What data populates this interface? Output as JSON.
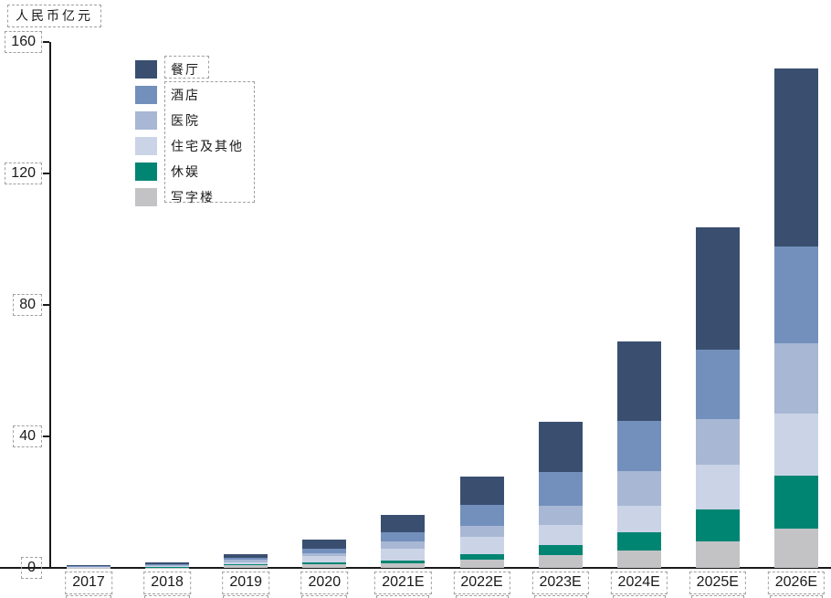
{
  "header": {
    "unit_label": "人民币亿元"
  },
  "colors": {
    "axis": "#1a1a1a",
    "dashed_box_border": "#a0a0a0",
    "restaurant": "#3a4f70",
    "hotel": "#7390bc",
    "hospital": "#a7b7d4",
    "residential": "#cbd4e6",
    "leisure": "#008573",
    "office": "#c3c3c6"
  },
  "chart_data": {
    "type": "bar",
    "stacked": true,
    "title": "",
    "ylabel": "人民币亿元",
    "xlabel": "",
    "ylim": [
      0,
      160
    ],
    "y_ticks": [
      0,
      40,
      80,
      120,
      160
    ],
    "grid": false,
    "legend_position": "upper-left-inside",
    "categories": [
      "2017",
      "2018",
      "2019",
      "2020",
      "2021E",
      "2022E",
      "2023E",
      "2024E",
      "2025E",
      "2026E"
    ],
    "series": [
      {
        "name": "餐厅",
        "color": "#3a4f70",
        "values": [
          0.3,
          0.5,
          1.1,
          2.6,
          5.1,
          8.6,
          15.2,
          24.3,
          37.0,
          54.3
        ]
      },
      {
        "name": "酒店",
        "color": "#7390bc",
        "values": [
          0.2,
          0.5,
          0.8,
          1.4,
          2.9,
          6.5,
          10.3,
          15.3,
          21.3,
          29.4
        ]
      },
      {
        "name": "医院",
        "color": "#a7b7d4",
        "values": [
          0.1,
          0.2,
          0.6,
          1.0,
          2.2,
          3.3,
          6.0,
          10.6,
          13.9,
          21.3
        ]
      },
      {
        "name": "住宅及其他",
        "color": "#cbd4e6",
        "values": [
          0.1,
          0.3,
          0.8,
          1.8,
          3.6,
          5.3,
          6.0,
          7.9,
          13.4,
          19.0
        ]
      },
      {
        "name": "休娱",
        "color": "#008573",
        "values": [
          0.0,
          0.1,
          0.3,
          0.6,
          0.8,
          1.6,
          3.0,
          5.7,
          9.8,
          16.0
        ]
      },
      {
        "name": "写字楼",
        "color": "#c3c3c6",
        "values": [
          0.1,
          0.1,
          0.7,
          1.1,
          1.4,
          2.6,
          4.0,
          5.2,
          8.1,
          12.0
        ]
      }
    ],
    "totals": [
      0.8,
      1.7,
      4.3,
      8.5,
      16.0,
      27.9,
      44.5,
      69.0,
      103.5,
      152.0
    ]
  }
}
